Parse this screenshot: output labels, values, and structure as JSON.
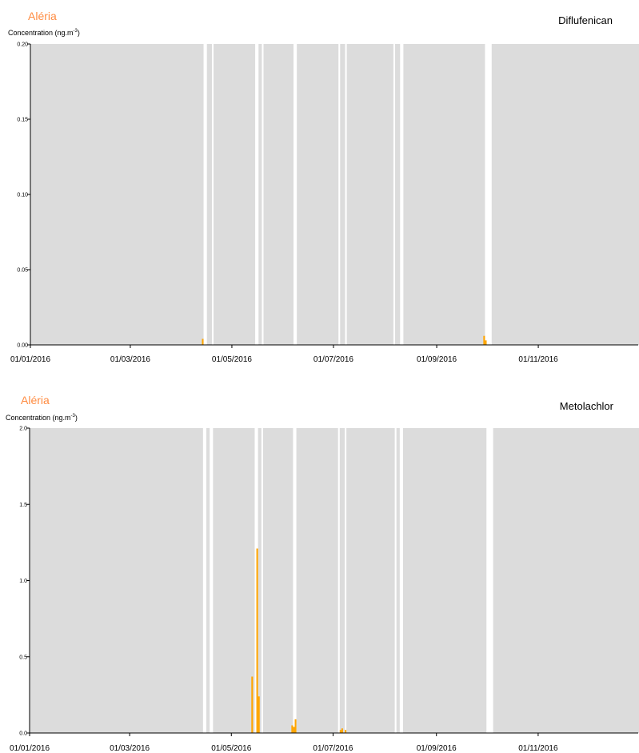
{
  "chart_data": [
    {
      "type": "bar",
      "site": "Aléria",
      "title": "Diflufenican",
      "ylabel": "Concentration (ng.m",
      "ylabel_sup": "-3",
      "ylabel_close": ")",
      "ylim": [
        0,
        0.2
      ],
      "yticks": [
        "0.00",
        "0.05",
        "0.10",
        "0.15",
        "0.20"
      ],
      "xlim": [
        "2016-01-01",
        "2016-12-31"
      ],
      "xticks": [
        "01/01/2016",
        "01/03/2016",
        "01/05/2016",
        "01/07/2016",
        "01/09/2016",
        "01/11/2016"
      ],
      "sampling_periods": [
        [
          "2016-01-01",
          "2016-04-13"
        ],
        [
          "2016-04-16",
          "2016-04-18"
        ],
        [
          "2016-04-20",
          "2016-05-14"
        ],
        [
          "2016-05-17",
          "2016-05-18"
        ],
        [
          "2016-05-20",
          "2016-06-06"
        ],
        [
          "2016-06-09",
          "2016-07-03"
        ],
        [
          "2016-07-05",
          "2016-07-07"
        ],
        [
          "2016-07-09",
          "2016-08-05"
        ],
        [
          "2016-08-07",
          "2016-08-09"
        ],
        [
          "2016-08-12",
          "2016-09-29"
        ],
        [
          "2016-10-04",
          "2016-12-31"
        ]
      ],
      "color": "#FFA500",
      "background_color": "#DCDCDC",
      "bars": [
        {
          "x": "2016-04-13",
          "y": 0.004
        },
        {
          "x": "2016-09-29",
          "y": 0.006
        },
        {
          "x": "2016-09-30",
          "y": 0.003
        }
      ]
    },
    {
      "type": "bar",
      "site": "Aléria",
      "title": "Metolachlor",
      "ylabel": "Concentration (ng.m",
      "ylabel_sup": "-3",
      "ylabel_close": ")",
      "ylim": [
        0,
        2.0
      ],
      "yticks": [
        "0.0",
        "0.5",
        "1.0",
        "1.5",
        "2.0"
      ],
      "xlim": [
        "2016-01-01",
        "2016-12-31"
      ],
      "xticks": [
        "01/01/2016",
        "01/03/2016",
        "01/05/2016",
        "01/07/2016",
        "01/09/2016",
        "01/11/2016"
      ],
      "sampling_periods": [
        [
          "2016-01-01",
          "2016-04-13"
        ],
        [
          "2016-04-16",
          "2016-04-17"
        ],
        [
          "2016-04-20",
          "2016-05-14"
        ],
        [
          "2016-05-17",
          "2016-05-18"
        ],
        [
          "2016-05-20",
          "2016-06-06"
        ],
        [
          "2016-06-09",
          "2016-07-03"
        ],
        [
          "2016-07-05",
          "2016-07-07"
        ],
        [
          "2016-07-09",
          "2016-08-06"
        ],
        [
          "2016-08-08",
          "2016-08-09"
        ],
        [
          "2016-08-12",
          "2016-09-30"
        ],
        [
          "2016-10-05",
          "2016-12-31"
        ]
      ],
      "color": "#FFA500",
      "background_color": "#DCDCDC",
      "bars": [
        {
          "x": "2016-05-13",
          "y": 0.37
        },
        {
          "x": "2016-05-16",
          "y": 1.21
        },
        {
          "x": "2016-05-17",
          "y": 0.24
        },
        {
          "x": "2016-06-06",
          "y": 0.05
        },
        {
          "x": "2016-06-07",
          "y": 0.04
        },
        {
          "x": "2016-06-08",
          "y": 0.09
        },
        {
          "x": "2016-07-05",
          "y": 0.02
        },
        {
          "x": "2016-07-06",
          "y": 0.03
        },
        {
          "x": "2016-07-08",
          "y": 0.02
        }
      ]
    }
  ]
}
